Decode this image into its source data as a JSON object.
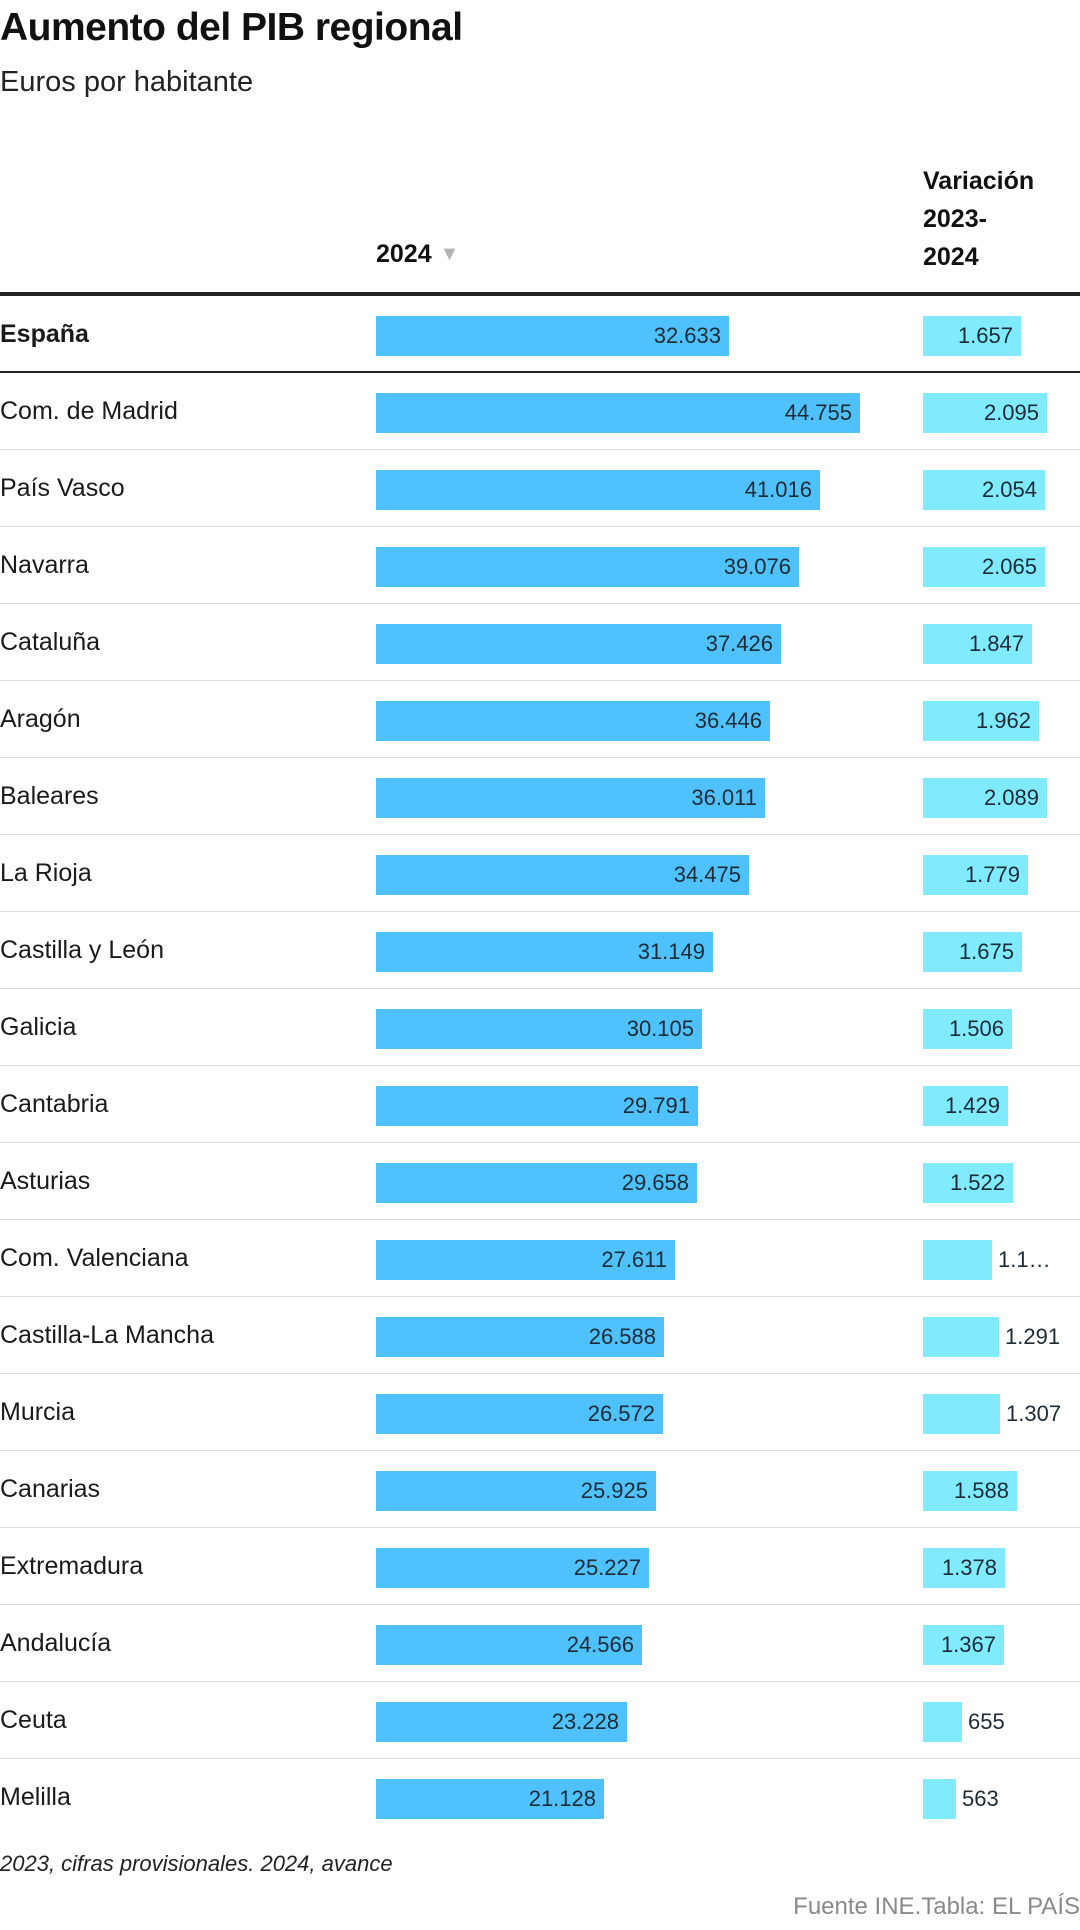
{
  "title": "Aumento del PIB regional",
  "subtitle": "Euros por habitante",
  "footnote": "2023, cifras provisionales. 2024, avance",
  "source": "Fuente INE.Tabla: EL PAÍS",
  "colors": {
    "bar_2024": "#4fc1fd",
    "bar_variation": "#80ebfe"
  },
  "icons": {
    "sort": "sort-desc-triangle-icon"
  },
  "chart_data": {
    "type": "bar",
    "columns": {
      "year": "2024",
      "sort_glyph": "▼",
      "variation": [
        "Variación",
        "2023-",
        "2024"
      ]
    },
    "xlim_2024": [
      0,
      44755
    ],
    "xlim_variation": [
      0,
      2095
    ],
    "rows": [
      {
        "region": "España",
        "v2024": 32633,
        "label2024": "32.633",
        "var": 1657,
        "labelVar": "1.657",
        "total": true
      },
      {
        "region": "Com. de Madrid",
        "v2024": 44755,
        "label2024": "44.755",
        "var": 2095,
        "labelVar": "2.095"
      },
      {
        "region": "País Vasco",
        "v2024": 41016,
        "label2024": "41.016",
        "var": 2054,
        "labelVar": "2.054"
      },
      {
        "region": "Navarra",
        "v2024": 39076,
        "label2024": "39.076",
        "var": 2065,
        "labelVar": "2.065"
      },
      {
        "region": "Cataluña",
        "v2024": 37426,
        "label2024": "37.426",
        "var": 1847,
        "labelVar": "1.847"
      },
      {
        "region": "Aragón",
        "v2024": 36446,
        "label2024": "36.446",
        "var": 1962,
        "labelVar": "1.962"
      },
      {
        "region": "Baleares",
        "v2024": 36011,
        "label2024": "36.011",
        "var": 2089,
        "labelVar": "2.089"
      },
      {
        "region": "La Rioja",
        "v2024": 34475,
        "label2024": "34.475",
        "var": 1779,
        "labelVar": "1.779"
      },
      {
        "region": "Castilla y León",
        "v2024": 31149,
        "label2024": "31.149",
        "var": 1675,
        "labelVar": "1.675"
      },
      {
        "region": "Galicia",
        "v2024": 30105,
        "label2024": "30.105",
        "var": 1506,
        "labelVar": "1.506"
      },
      {
        "region": "Cantabria",
        "v2024": 29791,
        "label2024": "29.791",
        "var": 1429,
        "labelVar": "1.429"
      },
      {
        "region": "Asturias",
        "v2024": 29658,
        "label2024": "29.658",
        "var": 1522,
        "labelVar": "1.522"
      },
      {
        "region": "Com. Valenciana",
        "v2024": 27611,
        "label2024": "27.611",
        "var": 1160,
        "labelVar": "1.1…"
      },
      {
        "region": "Castilla-La Mancha",
        "v2024": 26588,
        "label2024": "26.588",
        "var": 1291,
        "labelVar": "1.291"
      },
      {
        "region": "Murcia",
        "v2024": 26572,
        "label2024": "26.572",
        "var": 1307,
        "labelVar": "1.307"
      },
      {
        "region": "Canarias",
        "v2024": 25925,
        "label2024": "25.925",
        "var": 1588,
        "labelVar": "1.588"
      },
      {
        "region": "Extremadura",
        "v2024": 25227,
        "label2024": "25.227",
        "var": 1378,
        "labelVar": "1.378"
      },
      {
        "region": "Andalucía",
        "v2024": 24566,
        "label2024": "24.566",
        "var": 1367,
        "labelVar": "1.367"
      },
      {
        "region": "Ceuta",
        "v2024": 23228,
        "label2024": "23.228",
        "var": 655,
        "labelVar": "655"
      },
      {
        "region": "Melilla",
        "v2024": 21128,
        "label2024": "21.128",
        "var": 563,
        "labelVar": "563"
      }
    ]
  }
}
